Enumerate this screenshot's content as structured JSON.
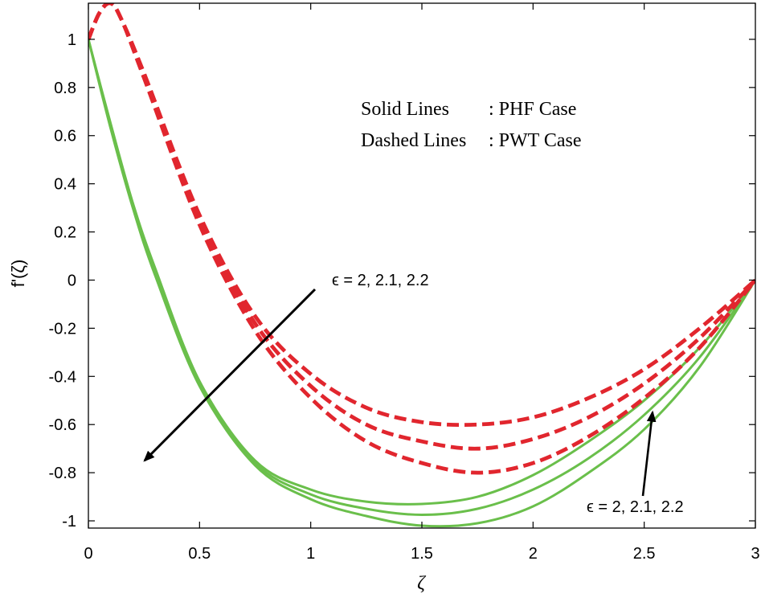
{
  "chart_data": {
    "type": "line",
    "xlabel": "ζ",
    "ylabel": "fʹ(ζ)",
    "xlim": [
      0,
      3
    ],
    "ylim": [
      -1.03,
      1.15
    ],
    "xticks": [
      0,
      0.5,
      1,
      1.5,
      2,
      2.5,
      3
    ],
    "yticks": [
      1,
      0.8,
      0.6,
      0.4,
      0.2,
      0,
      -0.2,
      -0.4,
      -0.6,
      -0.8,
      -1
    ],
    "grid": false,
    "legend_text": [
      {
        "label": "Solid Lines",
        "value": ": PHF Case"
      },
      {
        "label": "Dashed Lines",
        "value": ": PWT Case"
      }
    ],
    "annotations": [
      {
        "text": "ϵ = 2, 2.1, 2.2",
        "position": "upper-middle, arrow pointing down-left"
      },
      {
        "text": "ϵ = 2, 2.1, 2.2",
        "position": "lower-right, arrow pointing up"
      }
    ],
    "series": [
      {
        "style": "solid",
        "color": "#6abf4b",
        "x": [
          0,
          0.1,
          0.2,
          0.3,
          0.5,
          0.75,
          1.0,
          1.25,
          1.5,
          1.75,
          2.0,
          2.25,
          2.5,
          2.75,
          3.0
        ],
        "y": [
          1.0,
          0.65,
          0.32,
          0.05,
          -0.42,
          -0.75,
          -0.87,
          -0.92,
          -0.93,
          -0.9,
          -0.81,
          -0.67,
          -0.5,
          -0.28,
          0.0
        ]
      },
      {
        "style": "solid",
        "color": "#6abf4b",
        "x": [
          0,
          0.1,
          0.2,
          0.3,
          0.5,
          0.75,
          1.0,
          1.25,
          1.5,
          1.75,
          2.0,
          2.25,
          2.5,
          2.75,
          3.0
        ],
        "y": [
          1.0,
          0.64,
          0.31,
          0.03,
          -0.43,
          -0.76,
          -0.89,
          -0.95,
          -0.975,
          -0.95,
          -0.87,
          -0.74,
          -0.56,
          -0.32,
          0.0
        ]
      },
      {
        "style": "solid",
        "color": "#6abf4b",
        "x": [
          0,
          0.1,
          0.2,
          0.3,
          0.5,
          0.75,
          1.0,
          1.25,
          1.5,
          1.75,
          2.0,
          2.25,
          2.5,
          2.75,
          3.0
        ],
        "y": [
          1.0,
          0.63,
          0.3,
          0.02,
          -0.44,
          -0.77,
          -0.91,
          -0.98,
          -1.02,
          -1.01,
          -0.94,
          -0.8,
          -0.62,
          -0.36,
          0.0
        ]
      },
      {
        "style": "dashed",
        "color": "#e1262e",
        "x": [
          0,
          0.05,
          0.1,
          0.15,
          0.25,
          0.5,
          0.75,
          1.0,
          1.25,
          1.5,
          1.75,
          2.0,
          2.25,
          2.5,
          2.75,
          3.0
        ],
        "y": [
          1.0,
          1.11,
          1.15,
          1.08,
          0.86,
          0.27,
          -0.15,
          -0.39,
          -0.53,
          -0.59,
          -0.6,
          -0.57,
          -0.49,
          -0.37,
          -0.2,
          0.0
        ]
      },
      {
        "style": "dashed",
        "color": "#e1262e",
        "x": [
          0,
          0.05,
          0.1,
          0.15,
          0.25,
          0.5,
          0.75,
          1.0,
          1.25,
          1.5,
          1.75,
          2.0,
          2.25,
          2.5,
          2.75,
          3.0
        ],
        "y": [
          1.0,
          1.11,
          1.15,
          1.08,
          0.85,
          0.25,
          -0.18,
          -0.44,
          -0.6,
          -0.67,
          -0.7,
          -0.66,
          -0.57,
          -0.43,
          -0.24,
          0.0
        ]
      },
      {
        "style": "dashed",
        "color": "#e1262e",
        "x": [
          0,
          0.05,
          0.1,
          0.15,
          0.25,
          0.5,
          0.75,
          1.0,
          1.25,
          1.5,
          1.75,
          2.0,
          2.25,
          2.5,
          2.75,
          3.0
        ],
        "y": [
          1.0,
          1.11,
          1.15,
          1.08,
          0.84,
          0.23,
          -0.21,
          -0.49,
          -0.67,
          -0.76,
          -0.8,
          -0.76,
          -0.65,
          -0.49,
          -0.28,
          0.0
        ]
      }
    ]
  }
}
